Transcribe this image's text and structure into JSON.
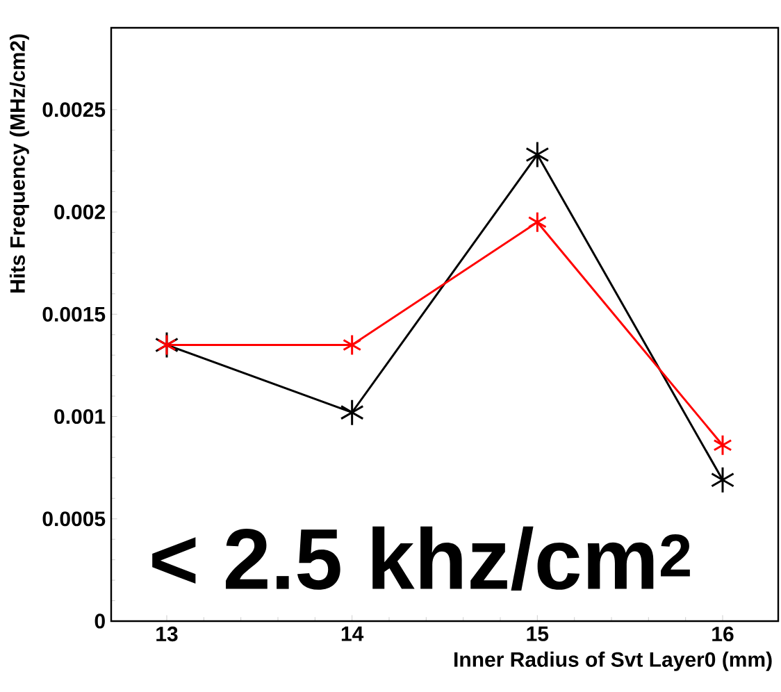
{
  "chart_data": {
    "type": "line",
    "xlabel": "Inner Radius of Svt Layer0 (mm)",
    "ylabel": "Hits Frequency (MHz/cm2)",
    "x": [
      13,
      14,
      15,
      16
    ],
    "series": [
      {
        "color": "#000000",
        "values": [
          0.00135,
          0.00102,
          0.00228,
          0.00069
        ]
      },
      {
        "color": "#ff0000",
        "values": [
          0.00135,
          0.00135,
          0.00195,
          0.00086
        ]
      }
    ],
    "xlim": [
      12.7,
      16.3
    ],
    "ylim": [
      0,
      0.0029
    ],
    "xticks": [
      13,
      14,
      15,
      16
    ],
    "yticks": [
      0,
      0.0005,
      0.001,
      0.0015,
      0.002,
      0.0025
    ],
    "marker": "cross",
    "line_style": "solid",
    "annotations": [
      "< 2.5 khz/cm$^{2}$"
    ]
  }
}
